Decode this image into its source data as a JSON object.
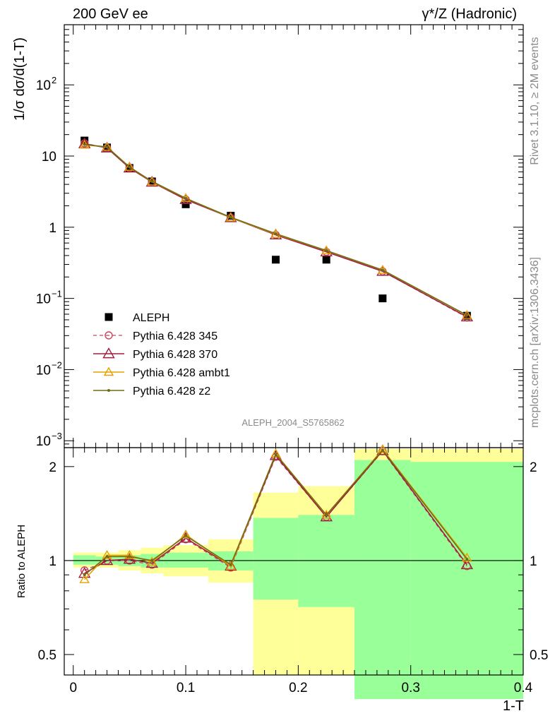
{
  "header": {
    "left": "200 GeV ee",
    "right": "γ*/Z (Hadronic)"
  },
  "side_labels": {
    "top": "Rivet 3.1.10, ≥ 2M events",
    "bottom": "mcplots.cern.ch [arXiv:1306.3436]"
  },
  "watermark": "ALEPH_2004_S5765862",
  "colors": {
    "data": "#000000",
    "p345": "#c8465a",
    "p370": "#a01e3c",
    "ambt1": "#e6a000",
    "z2": "#6e6e14",
    "band_inner": "#99ff99",
    "band_outer": "#ffff99"
  },
  "chart_data": [
    {
      "type": "scatter",
      "panel": "main",
      "ylabel": "1/σ dσ/d(1-T)",
      "yscale": "log",
      "ylim": [
        0.0008,
        700
      ],
      "xlim": [
        -0.008,
        0.4
      ],
      "y_ticks": [
        "10^-3",
        "10^-2",
        "10^-1",
        "1",
        "10",
        "10^2"
      ],
      "legend_position": "lower-left",
      "x": [
        0.01,
        0.03,
        0.05,
        0.07,
        0.1,
        0.14,
        0.18,
        0.225,
        0.275,
        0.35
      ],
      "series": [
        {
          "name": "ALEPH",
          "style": "square-markers",
          "color": "#000000",
          "values": [
            16.5,
            13.2,
            6.8,
            4.4,
            2.1,
            1.45,
            0.35,
            0.35,
            0.1,
            0.057
          ]
        },
        {
          "name": "Pythia 6.428 345",
          "style": "dashed-line circles",
          "color": "#c8465a",
          "values": [
            15.1,
            13.0,
            6.8,
            4.3,
            2.45,
            1.36,
            0.78,
            0.45,
            0.24,
            0.054
          ]
        },
        {
          "name": "Pythia 6.428 370",
          "style": "line triangles",
          "color": "#a01e3c",
          "values": [
            14.9,
            13.0,
            6.8,
            4.3,
            2.45,
            1.36,
            0.78,
            0.45,
            0.24,
            0.055
          ]
        },
        {
          "name": "Pythia 6.428 ambt1",
          "style": "line open-triangles",
          "color": "#e6a000",
          "values": [
            14.3,
            13.4,
            7.0,
            4.35,
            2.55,
            1.36,
            0.8,
            0.47,
            0.25,
            0.058
          ]
        },
        {
          "name": "Pythia 6.428 z2",
          "style": "line dots",
          "color": "#6e6e14",
          "values": [
            14.5,
            13.4,
            7.0,
            4.4,
            2.55,
            1.38,
            0.81,
            0.47,
            0.25,
            0.058
          ]
        }
      ]
    },
    {
      "type": "line",
      "panel": "ratio",
      "ylabel": "Ratio to ALEPH",
      "xlabel": "1-T",
      "ylim": [
        0.43,
        2.3
      ],
      "yscale": "log",
      "xlim": [
        -0.008,
        0.4
      ],
      "y_ticks": [
        "0.5",
        "1",
        "2"
      ],
      "x_ticks": [
        "0",
        "0.1",
        "0.2",
        "0.3",
        "0.4"
      ],
      "x": [
        0.01,
        0.03,
        0.05,
        0.07,
        0.1,
        0.14,
        0.18,
        0.225,
        0.275,
        0.35
      ],
      "bands": [
        {
          "x0": 0.0,
          "x1": 0.02,
          "inner": [
            0.97,
            1.04
          ],
          "outer": [
            0.95,
            1.06
          ]
        },
        {
          "x0": 0.02,
          "x1": 0.04,
          "inner": [
            0.97,
            1.03
          ],
          "outer": [
            0.95,
            1.06
          ]
        },
        {
          "x0": 0.04,
          "x1": 0.06,
          "inner": [
            0.96,
            1.04
          ],
          "outer": [
            0.93,
            1.08
          ]
        },
        {
          "x0": 0.06,
          "x1": 0.08,
          "inner": [
            0.95,
            1.05
          ],
          "outer": [
            0.91,
            1.1
          ]
        },
        {
          "x0": 0.08,
          "x1": 0.12,
          "inner": [
            0.95,
            1.06
          ],
          "outer": [
            0.89,
            1.12
          ]
        },
        {
          "x0": 0.12,
          "x1": 0.16,
          "inner": [
            0.93,
            1.07
          ],
          "outer": [
            0.85,
            1.17
          ]
        },
        {
          "x0": 0.16,
          "x1": 0.2,
          "inner": [
            0.75,
            1.37
          ],
          "outer": [
            0.375,
            1.65
          ]
        },
        {
          "x0": 0.2,
          "x1": 0.25,
          "inner": [
            0.71,
            1.4
          ],
          "outer": [
            0.36,
            1.73
          ]
        },
        {
          "x0": 0.25,
          "x1": 0.3,
          "inner": [
            0.36,
            2.1
          ],
          "outer": [
            0.36,
            2.28
          ]
        },
        {
          "x0": 0.3,
          "x1": 0.4,
          "inner": [
            0.36,
            2.07
          ],
          "outer": [
            0.36,
            2.28
          ]
        }
      ],
      "series": [
        {
          "name": "Pythia 6.428 345",
          "color": "#c8465a",
          "values": [
            0.93,
            1.0,
            1.0,
            0.97,
            1.17,
            0.95,
            2.15,
            1.38,
            2.24,
            0.96
          ]
        },
        {
          "name": "Pythia 6.428 370",
          "color": "#a01e3c",
          "values": [
            0.91,
            1.0,
            1.01,
            0.98,
            1.18,
            0.96,
            2.17,
            1.38,
            2.25,
            0.97
          ]
        },
        {
          "name": "Pythia 6.428 ambt1",
          "color": "#e6a000",
          "values": [
            0.87,
            1.04,
            1.04,
            0.99,
            1.21,
            0.96,
            2.2,
            1.4,
            2.27,
            1.02
          ]
        },
        {
          "name": "Pythia 6.428 z2",
          "color": "#6e6e14",
          "values": [
            0.9,
            1.03,
            1.03,
            1.0,
            1.2,
            0.97,
            2.19,
            1.4,
            2.26,
            1.01
          ]
        }
      ]
    }
  ]
}
